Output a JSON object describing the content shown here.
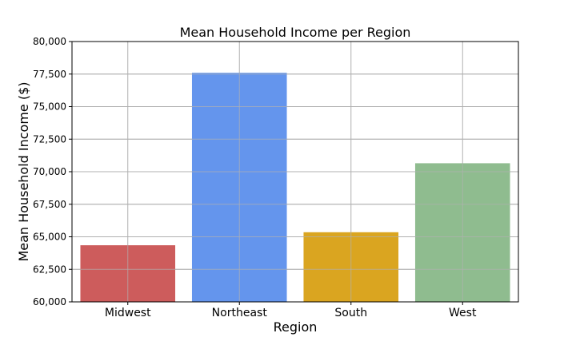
{
  "chart_data": {
    "type": "bar",
    "title": "Mean Household Income per Region",
    "xlabel": "Region",
    "ylabel": "Mean Household Income ($)",
    "categories": [
      "Midwest",
      "Northeast",
      "South",
      "West"
    ],
    "values": [
      64350,
      77600,
      65350,
      70650
    ],
    "colors": [
      "#cd5c5c",
      "#6495ed",
      "#daa520",
      "#8fbc8f"
    ],
    "ylim": [
      60000,
      80000
    ],
    "yticks": [
      60000,
      62500,
      65000,
      67500,
      70000,
      72500,
      75000,
      77500,
      80000
    ],
    "ytick_labels": [
      "60,000",
      "62,500",
      "65,000",
      "67,500",
      "70,000",
      "72,500",
      "75,000",
      "77,500",
      "80,000"
    ],
    "grid": true
  }
}
